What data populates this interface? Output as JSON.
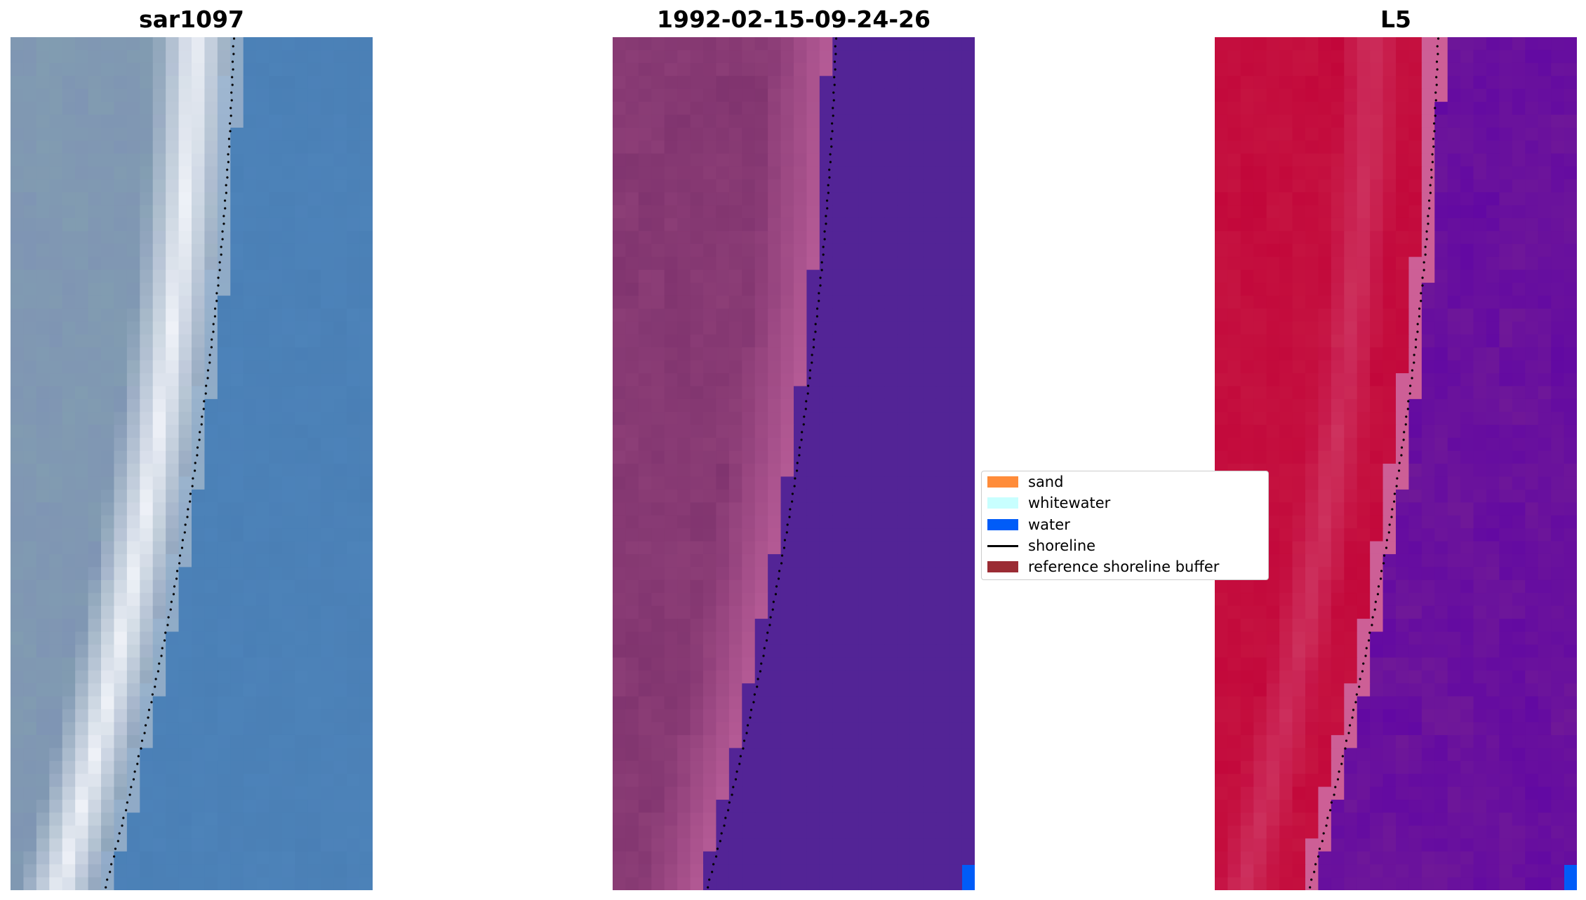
{
  "titles": {
    "left": "sar1097",
    "middle": "1992-02-15-09-24-26",
    "right": "L5"
  },
  "legend": {
    "items": [
      {
        "label": "sand",
        "color": "#ff8c3a",
        "kind": "patch"
      },
      {
        "label": "whitewater",
        "color": "#c8ffff",
        "kind": "patch"
      },
      {
        "label": "water",
        "color": "#005cf8",
        "kind": "patch"
      },
      {
        "label": "shoreline",
        "color": "#000000",
        "kind": "line"
      },
      {
        "label": "reference shoreline buffer",
        "color": "#9b2c34",
        "kind": "patch"
      }
    ]
  },
  "colors": {
    "rgb_water": "#4a7fb5",
    "rgb_land": "#7f94b4",
    "rgb_surf": "#f4f6fb",
    "class_water": "#532496",
    "class_land": "#7f336e",
    "class_sand_band": "#b45a95",
    "class_corner_water": "#005cf8",
    "index_land": "#c2063a",
    "index_water": "#6f1898",
    "index_corner_water": "#005cf8",
    "shoreline": "#000000"
  }
}
